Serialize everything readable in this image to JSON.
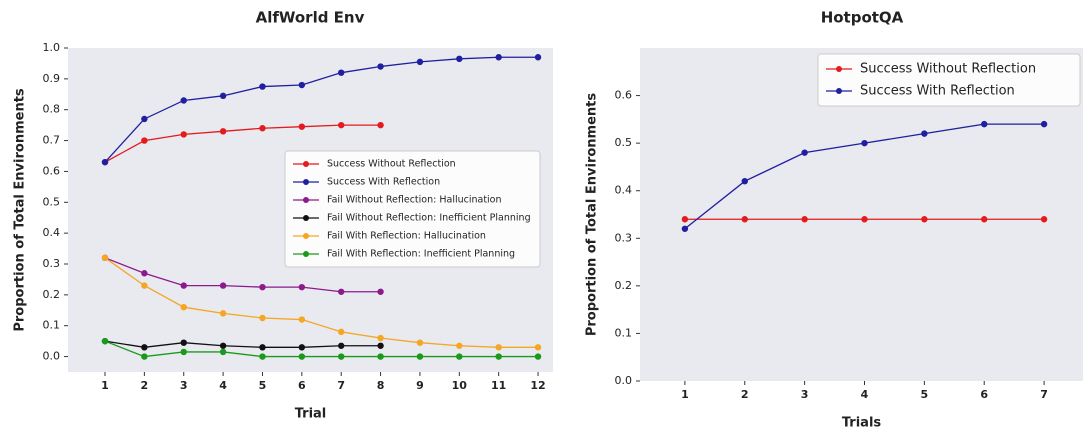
{
  "chart_data": [
    {
      "type": "line",
      "title": "AlfWorld Env",
      "xlabel": "Trial",
      "ylabel": "Proportion of Total Environments",
      "x": [
        1,
        2,
        3,
        4,
        5,
        6,
        7,
        8,
        9,
        10,
        11,
        12
      ],
      "xlim": [
        0.06,
        12.38
      ],
      "xticks": [
        1,
        2,
        3,
        4,
        5,
        6,
        7,
        8,
        9,
        10,
        11,
        12
      ],
      "ylim": [
        -0.05,
        1.0
      ],
      "yticks": [
        {
          "value": 0,
          "label": "0.0"
        },
        0.1,
        0.2,
        0.3,
        0.4,
        0.5,
        0.6,
        0.7,
        0.8,
        0.9,
        {
          "value": 1,
          "label": "1.0"
        }
      ],
      "grid": false,
      "legend": "center right",
      "series": [
        {
          "name": "Success Without Reflection",
          "color": "#e41a1c",
          "values": [
            0.63,
            0.7,
            0.72,
            0.73,
            0.74,
            0.745,
            0.75,
            0.75,
            null,
            null,
            null,
            null
          ]
        },
        {
          "name": "Success With Reflection",
          "color": "#1f1fa0",
          "values": [
            0.63,
            0.77,
            0.83,
            0.845,
            0.875,
            0.88,
            0.92,
            0.94,
            0.955,
            0.965,
            0.97,
            0.97
          ]
        },
        {
          "name": "Fail Without Reflection: Hallucination",
          "color": "#8b1a8b",
          "values": [
            0.32,
            0.27,
            0.23,
            0.23,
            0.225,
            0.225,
            0.21,
            0.21,
            null,
            null,
            null,
            null
          ]
        },
        {
          "name": "Fail Without Reflection: Inefficient Planning",
          "color": "#111111",
          "values": [
            0.05,
            0.03,
            0.045,
            0.035,
            0.03,
            0.03,
            0.035,
            0.035,
            null,
            null,
            null,
            null
          ]
        },
        {
          "name": "Fail With Reflection: Hallucination",
          "color": "#f5a623",
          "values": [
            0.32,
            0.23,
            0.16,
            0.14,
            0.125,
            0.12,
            0.08,
            0.06,
            0.045,
            0.035,
            0.03,
            0.03
          ]
        },
        {
          "name": "Fail With Reflection: Inefficient Planning",
          "color": "#1a9a1a",
          "values": [
            0.05,
            0,
            0.015,
            0.015,
            0,
            0,
            0,
            0,
            0,
            0,
            0,
            0
          ]
        }
      ]
    },
    {
      "type": "line",
      "title": "HotpotQA",
      "xlabel": "Trials",
      "ylabel": "Proportion of Total Environments",
      "x": [
        1,
        2,
        3,
        4,
        5,
        6,
        7
      ],
      "xlim": [
        0.25,
        7.65
      ],
      "xticks": [
        1,
        2,
        3,
        4,
        5,
        6,
        7
      ],
      "ylim": [
        0,
        0.7
      ],
      "yticks": [
        {
          "value": 0,
          "label": "0.0"
        },
        0.1,
        0.2,
        0.3,
        0.4,
        0.5,
        0.6
      ],
      "grid": false,
      "legend": "upper right",
      "series": [
        {
          "name": "Success Without Reflection",
          "color": "#e41a1c",
          "values": [
            0.34,
            0.34,
            0.34,
            0.34,
            0.34,
            0.34,
            0.34
          ]
        },
        {
          "name": "Success With Reflection",
          "color": "#1f1fa0",
          "values": [
            0.32,
            0.42,
            0.48,
            0.5,
            0.52,
            0.54,
            0.54
          ]
        }
      ]
    }
  ]
}
